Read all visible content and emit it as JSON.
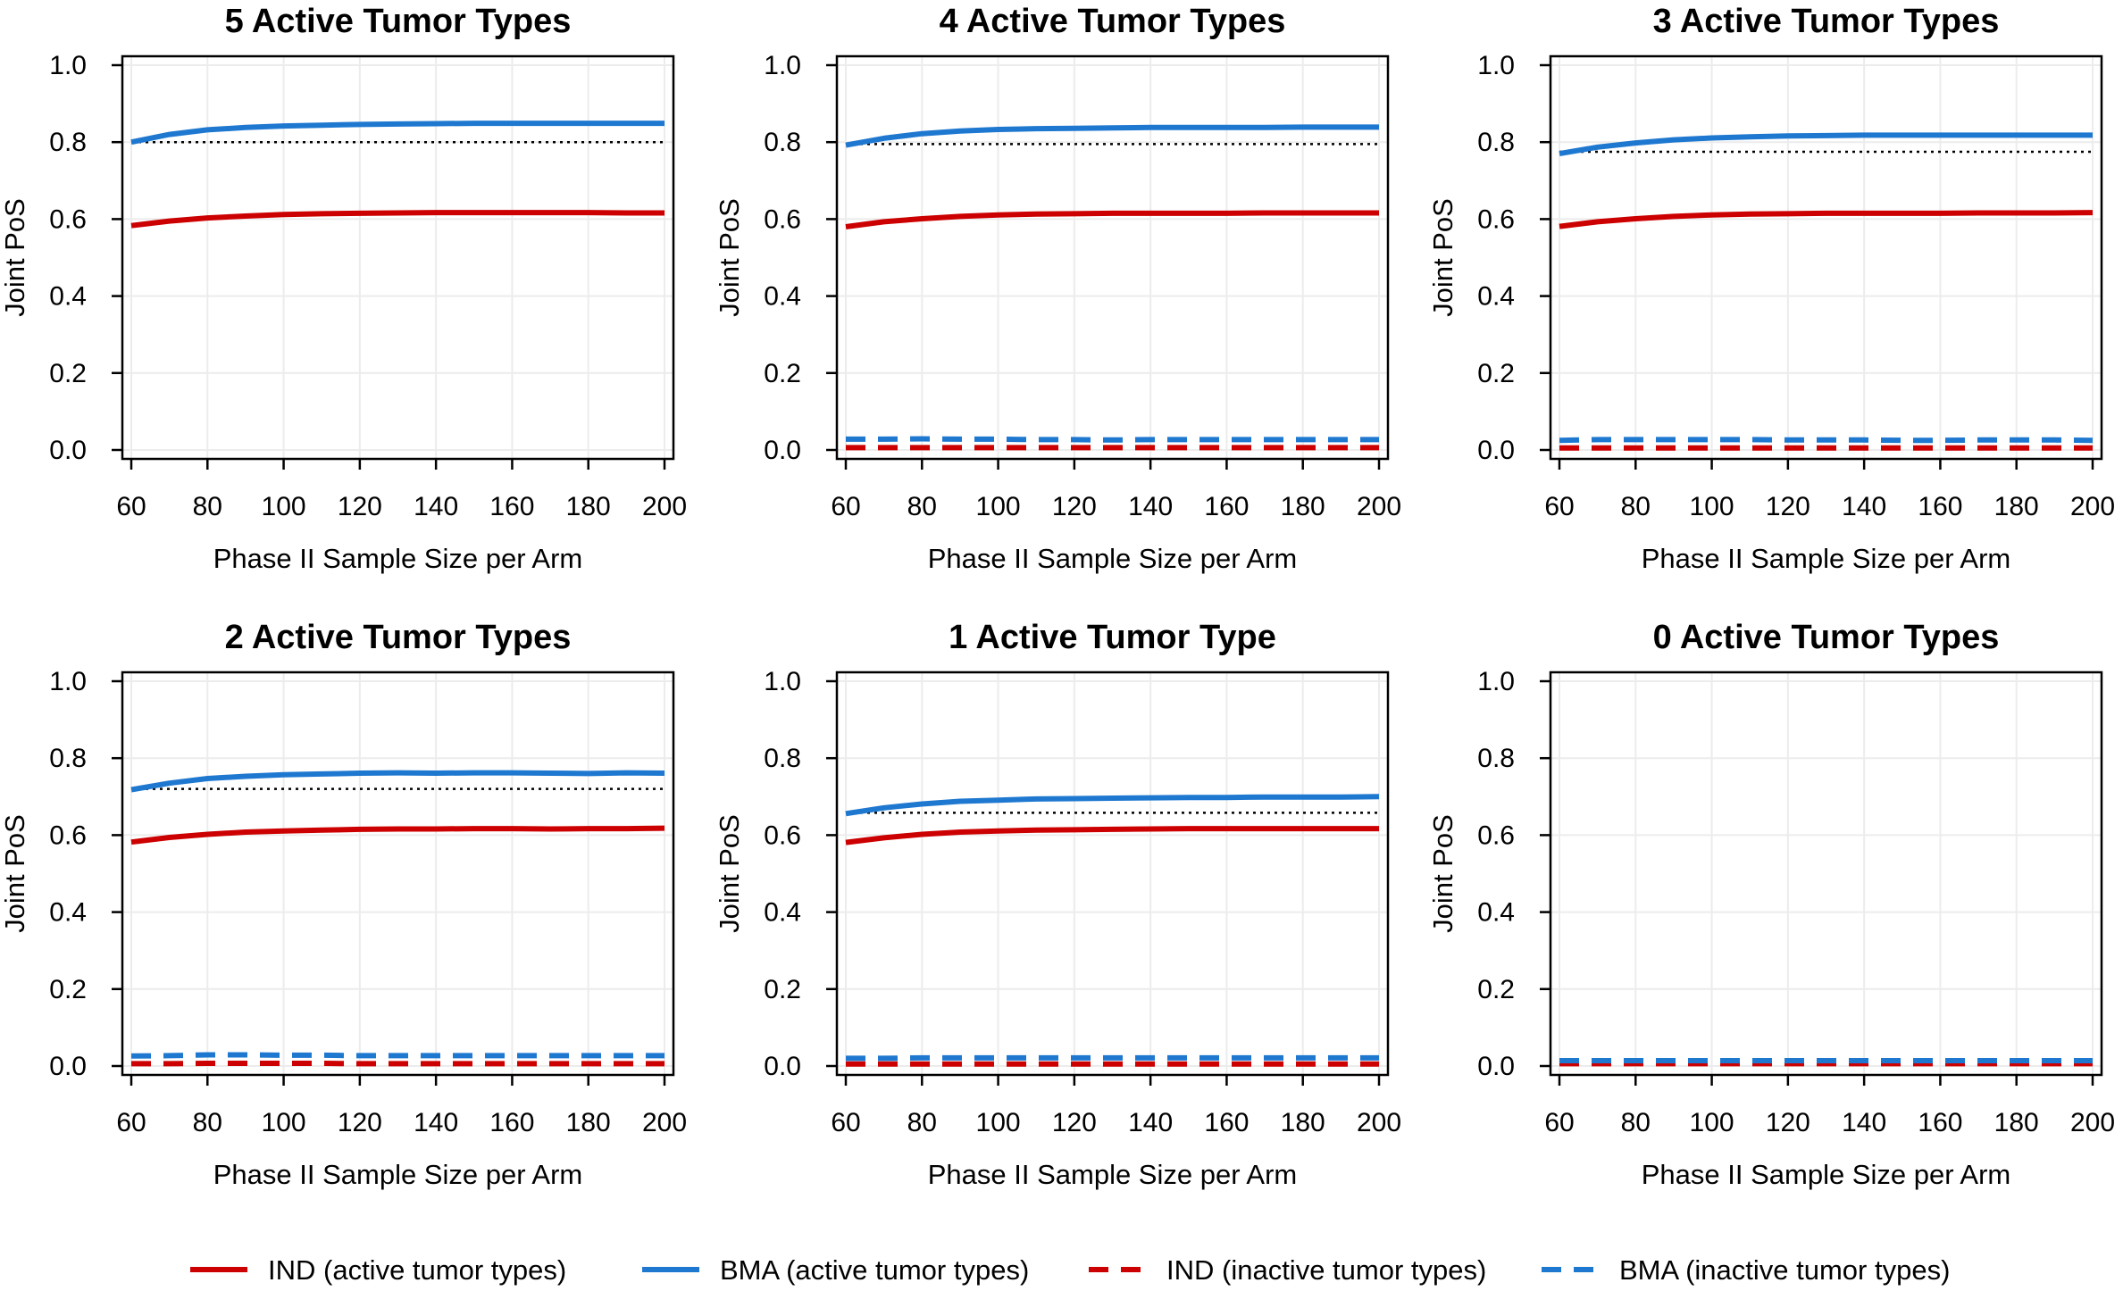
{
  "figure": {
    "legend": [
      {
        "label": "IND (active tumor types)",
        "color": "#cc0000",
        "dashed": false
      },
      {
        "label": "BMA (active tumor types)",
        "color": "#1f78d0",
        "dashed": false
      },
      {
        "label": "IND (inactive tumor types)",
        "color": "#cc0000",
        "dashed": true
      },
      {
        "label": "BMA (inactive tumor types)",
        "color": "#1f78d0",
        "dashed": true
      }
    ]
  },
  "chart_data": [
    {
      "type": "line",
      "title": "5 Active Tumor Types",
      "xlabel": "Phase II Sample Size per Arm",
      "ylabel": "Joint PoS",
      "xlim": [
        60,
        200
      ],
      "ylim": [
        0,
        1
      ],
      "xticks": [
        "60",
        "80",
        "100",
        "120",
        "140",
        "160",
        "180",
        "200"
      ],
      "yticks": [
        "0.0",
        "0.2",
        "0.4",
        "0.6",
        "0.8",
        "1.0"
      ],
      "x": [
        60,
        70,
        80,
        90,
        100,
        110,
        120,
        130,
        140,
        150,
        160,
        170,
        180,
        190,
        200
      ],
      "reference_line": 0.8,
      "series": [
        {
          "name": "IND (active tumor types)",
          "color": "#cc0000",
          "dashed": false,
          "values": [
            0.583,
            0.595,
            0.603,
            0.608,
            0.612,
            0.614,
            0.615,
            0.616,
            0.617,
            0.617,
            0.617,
            0.617,
            0.617,
            0.616,
            0.616
          ]
        },
        {
          "name": "BMA (active tumor types)",
          "color": "#1f78d0",
          "dashed": false,
          "values": [
            0.8,
            0.82,
            0.832,
            0.838,
            0.842,
            0.844,
            0.846,
            0.847,
            0.848,
            0.849,
            0.849,
            0.849,
            0.849,
            0.849,
            0.849
          ]
        }
      ]
    },
    {
      "type": "line",
      "title": "4 Active Tumor Types",
      "xlabel": "Phase II Sample Size per Arm",
      "ylabel": "Joint PoS",
      "xlim": [
        60,
        200
      ],
      "ylim": [
        0,
        1
      ],
      "xticks": [
        "60",
        "80",
        "100",
        "120",
        "140",
        "160",
        "180",
        "200"
      ],
      "yticks": [
        "0.0",
        "0.2",
        "0.4",
        "0.6",
        "0.8",
        "1.0"
      ],
      "x": [
        60,
        70,
        80,
        90,
        100,
        110,
        120,
        130,
        140,
        150,
        160,
        170,
        180,
        190,
        200
      ],
      "reference_line": 0.795,
      "series": [
        {
          "name": "IND (active tumor types)",
          "color": "#cc0000",
          "dashed": false,
          "values": [
            0.58,
            0.593,
            0.601,
            0.607,
            0.611,
            0.613,
            0.614,
            0.615,
            0.615,
            0.615,
            0.615,
            0.616,
            0.616,
            0.616,
            0.616
          ]
        },
        {
          "name": "BMA (active tumor types)",
          "color": "#1f78d0",
          "dashed": false,
          "values": [
            0.792,
            0.81,
            0.822,
            0.829,
            0.833,
            0.835,
            0.836,
            0.837,
            0.838,
            0.838,
            0.838,
            0.838,
            0.839,
            0.839,
            0.839
          ]
        },
        {
          "name": "IND (inactive tumor types)",
          "color": "#cc0000",
          "dashed": true,
          "values": [
            0.006,
            0.006,
            0.006,
            0.006,
            0.006,
            0.006,
            0.006,
            0.006,
            0.006,
            0.006,
            0.006,
            0.006,
            0.006,
            0.006,
            0.006
          ]
        },
        {
          "name": "BMA (inactive tumor types)",
          "color": "#1f78d0",
          "dashed": true,
          "values": [
            0.028,
            0.028,
            0.029,
            0.028,
            0.028,
            0.027,
            0.027,
            0.026,
            0.027,
            0.027,
            0.027,
            0.027,
            0.027,
            0.027,
            0.027
          ]
        }
      ]
    },
    {
      "type": "line",
      "title": "3 Active Tumor Types",
      "xlabel": "Phase II Sample Size per Arm",
      "ylabel": "Joint PoS",
      "xlim": [
        60,
        200
      ],
      "ylim": [
        0,
        1
      ],
      "xticks": [
        "60",
        "80",
        "100",
        "120",
        "140",
        "160",
        "180",
        "200"
      ],
      "yticks": [
        "0.0",
        "0.2",
        "0.4",
        "0.6",
        "0.8",
        "1.0"
      ],
      "x": [
        60,
        70,
        80,
        90,
        100,
        110,
        120,
        130,
        140,
        150,
        160,
        170,
        180,
        190,
        200
      ],
      "reference_line": 0.775,
      "series": [
        {
          "name": "IND (active tumor types)",
          "color": "#cc0000",
          "dashed": false,
          "values": [
            0.581,
            0.593,
            0.601,
            0.607,
            0.611,
            0.613,
            0.614,
            0.615,
            0.615,
            0.615,
            0.615,
            0.616,
            0.616,
            0.616,
            0.617
          ]
        },
        {
          "name": "BMA (active tumor types)",
          "color": "#1f78d0",
          "dashed": false,
          "values": [
            0.77,
            0.787,
            0.798,
            0.806,
            0.811,
            0.814,
            0.816,
            0.817,
            0.818,
            0.818,
            0.818,
            0.818,
            0.818,
            0.818,
            0.818
          ]
        },
        {
          "name": "IND (inactive tumor types)",
          "color": "#cc0000",
          "dashed": true,
          "values": [
            0.005,
            0.005,
            0.005,
            0.005,
            0.005,
            0.005,
            0.005,
            0.005,
            0.005,
            0.005,
            0.005,
            0.005,
            0.005,
            0.005,
            0.005
          ]
        },
        {
          "name": "BMA (inactive tumor types)",
          "color": "#1f78d0",
          "dashed": true,
          "values": [
            0.025,
            0.027,
            0.027,
            0.027,
            0.027,
            0.027,
            0.026,
            0.026,
            0.026,
            0.025,
            0.025,
            0.026,
            0.026,
            0.026,
            0.025
          ]
        }
      ]
    },
    {
      "type": "line",
      "title": "2 Active Tumor Types",
      "xlabel": "Phase II Sample Size per Arm",
      "ylabel": "Joint PoS",
      "xlim": [
        60,
        200
      ],
      "ylim": [
        0,
        1
      ],
      "xticks": [
        "60",
        "80",
        "100",
        "120",
        "140",
        "160",
        "180",
        "200"
      ],
      "yticks": [
        "0.0",
        "0.2",
        "0.4",
        "0.6",
        "0.8",
        "1.0"
      ],
      "x": [
        60,
        70,
        80,
        90,
        100,
        110,
        120,
        130,
        140,
        150,
        160,
        170,
        180,
        190,
        200
      ],
      "reference_line": 0.72,
      "series": [
        {
          "name": "IND (active tumor types)",
          "color": "#cc0000",
          "dashed": false,
          "values": [
            0.582,
            0.594,
            0.602,
            0.608,
            0.611,
            0.613,
            0.615,
            0.616,
            0.616,
            0.617,
            0.617,
            0.616,
            0.617,
            0.617,
            0.618
          ]
        },
        {
          "name": "BMA (active tumor types)",
          "color": "#1f78d0",
          "dashed": false,
          "values": [
            0.718,
            0.735,
            0.747,
            0.753,
            0.757,
            0.759,
            0.761,
            0.762,
            0.761,
            0.762,
            0.762,
            0.761,
            0.76,
            0.762,
            0.761
          ]
        },
        {
          "name": "IND (inactive tumor types)",
          "color": "#cc0000",
          "dashed": true,
          "values": [
            0.006,
            0.006,
            0.007,
            0.007,
            0.007,
            0.007,
            0.006,
            0.006,
            0.006,
            0.006,
            0.006,
            0.006,
            0.006,
            0.006,
            0.006
          ]
        },
        {
          "name": "BMA (inactive tumor types)",
          "color": "#1f78d0",
          "dashed": true,
          "values": [
            0.026,
            0.027,
            0.029,
            0.029,
            0.028,
            0.028,
            0.027,
            0.027,
            0.027,
            0.027,
            0.027,
            0.027,
            0.027,
            0.027,
            0.027
          ]
        }
      ]
    },
    {
      "type": "line",
      "title": "1 Active Tumor Type",
      "xlabel": "Phase II Sample Size per Arm",
      "ylabel": "Joint PoS",
      "xlim": [
        60,
        200
      ],
      "ylim": [
        0,
        1
      ],
      "xticks": [
        "60",
        "80",
        "100",
        "120",
        "140",
        "160",
        "180",
        "200"
      ],
      "yticks": [
        "0.0",
        "0.2",
        "0.4",
        "0.6",
        "0.8",
        "1.0"
      ],
      "x": [
        60,
        70,
        80,
        90,
        100,
        110,
        120,
        130,
        140,
        150,
        160,
        170,
        180,
        190,
        200
      ],
      "reference_line": 0.658,
      "series": [
        {
          "name": "IND (active tumor types)",
          "color": "#cc0000",
          "dashed": false,
          "values": [
            0.581,
            0.593,
            0.602,
            0.608,
            0.611,
            0.613,
            0.614,
            0.615,
            0.616,
            0.617,
            0.617,
            0.617,
            0.617,
            0.617,
            0.617
          ]
        },
        {
          "name": "BMA (active tumor types)",
          "color": "#1f78d0",
          "dashed": false,
          "values": [
            0.656,
            0.671,
            0.681,
            0.688,
            0.691,
            0.694,
            0.695,
            0.696,
            0.697,
            0.698,
            0.698,
            0.699,
            0.699,
            0.699,
            0.7
          ]
        },
        {
          "name": "IND (inactive tumor types)",
          "color": "#cc0000",
          "dashed": true,
          "values": [
            0.005,
            0.005,
            0.005,
            0.005,
            0.005,
            0.005,
            0.005,
            0.005,
            0.005,
            0.005,
            0.005,
            0.005,
            0.005,
            0.005,
            0.005
          ]
        },
        {
          "name": "BMA (inactive tumor types)",
          "color": "#1f78d0",
          "dashed": true,
          "values": [
            0.02,
            0.02,
            0.021,
            0.021,
            0.021,
            0.021,
            0.021,
            0.021,
            0.021,
            0.021,
            0.021,
            0.021,
            0.021,
            0.021,
            0.021
          ]
        }
      ]
    },
    {
      "type": "line",
      "title": "0 Active Tumor Types",
      "xlabel": "Phase II Sample Size per Arm",
      "ylabel": "Joint PoS",
      "xlim": [
        60,
        200
      ],
      "ylim": [
        0,
        1
      ],
      "xticks": [
        "60",
        "80",
        "100",
        "120",
        "140",
        "160",
        "180",
        "200"
      ],
      "yticks": [
        "0.0",
        "0.2",
        "0.4",
        "0.6",
        "0.8",
        "1.0"
      ],
      "x": [
        60,
        70,
        80,
        90,
        100,
        110,
        120,
        130,
        140,
        150,
        160,
        170,
        180,
        190,
        200
      ],
      "series": [
        {
          "name": "IND (inactive tumor types)",
          "color": "#cc0000",
          "dashed": true,
          "values": [
            0.006,
            0.006,
            0.006,
            0.006,
            0.006,
            0.006,
            0.006,
            0.006,
            0.006,
            0.006,
            0.006,
            0.006,
            0.006,
            0.006,
            0.006
          ]
        },
        {
          "name": "BMA (inactive tumor types)",
          "color": "#1f78d0",
          "dashed": true,
          "values": [
            0.014,
            0.014,
            0.014,
            0.014,
            0.014,
            0.014,
            0.014,
            0.014,
            0.014,
            0.014,
            0.014,
            0.014,
            0.014,
            0.014,
            0.014
          ]
        }
      ]
    }
  ]
}
